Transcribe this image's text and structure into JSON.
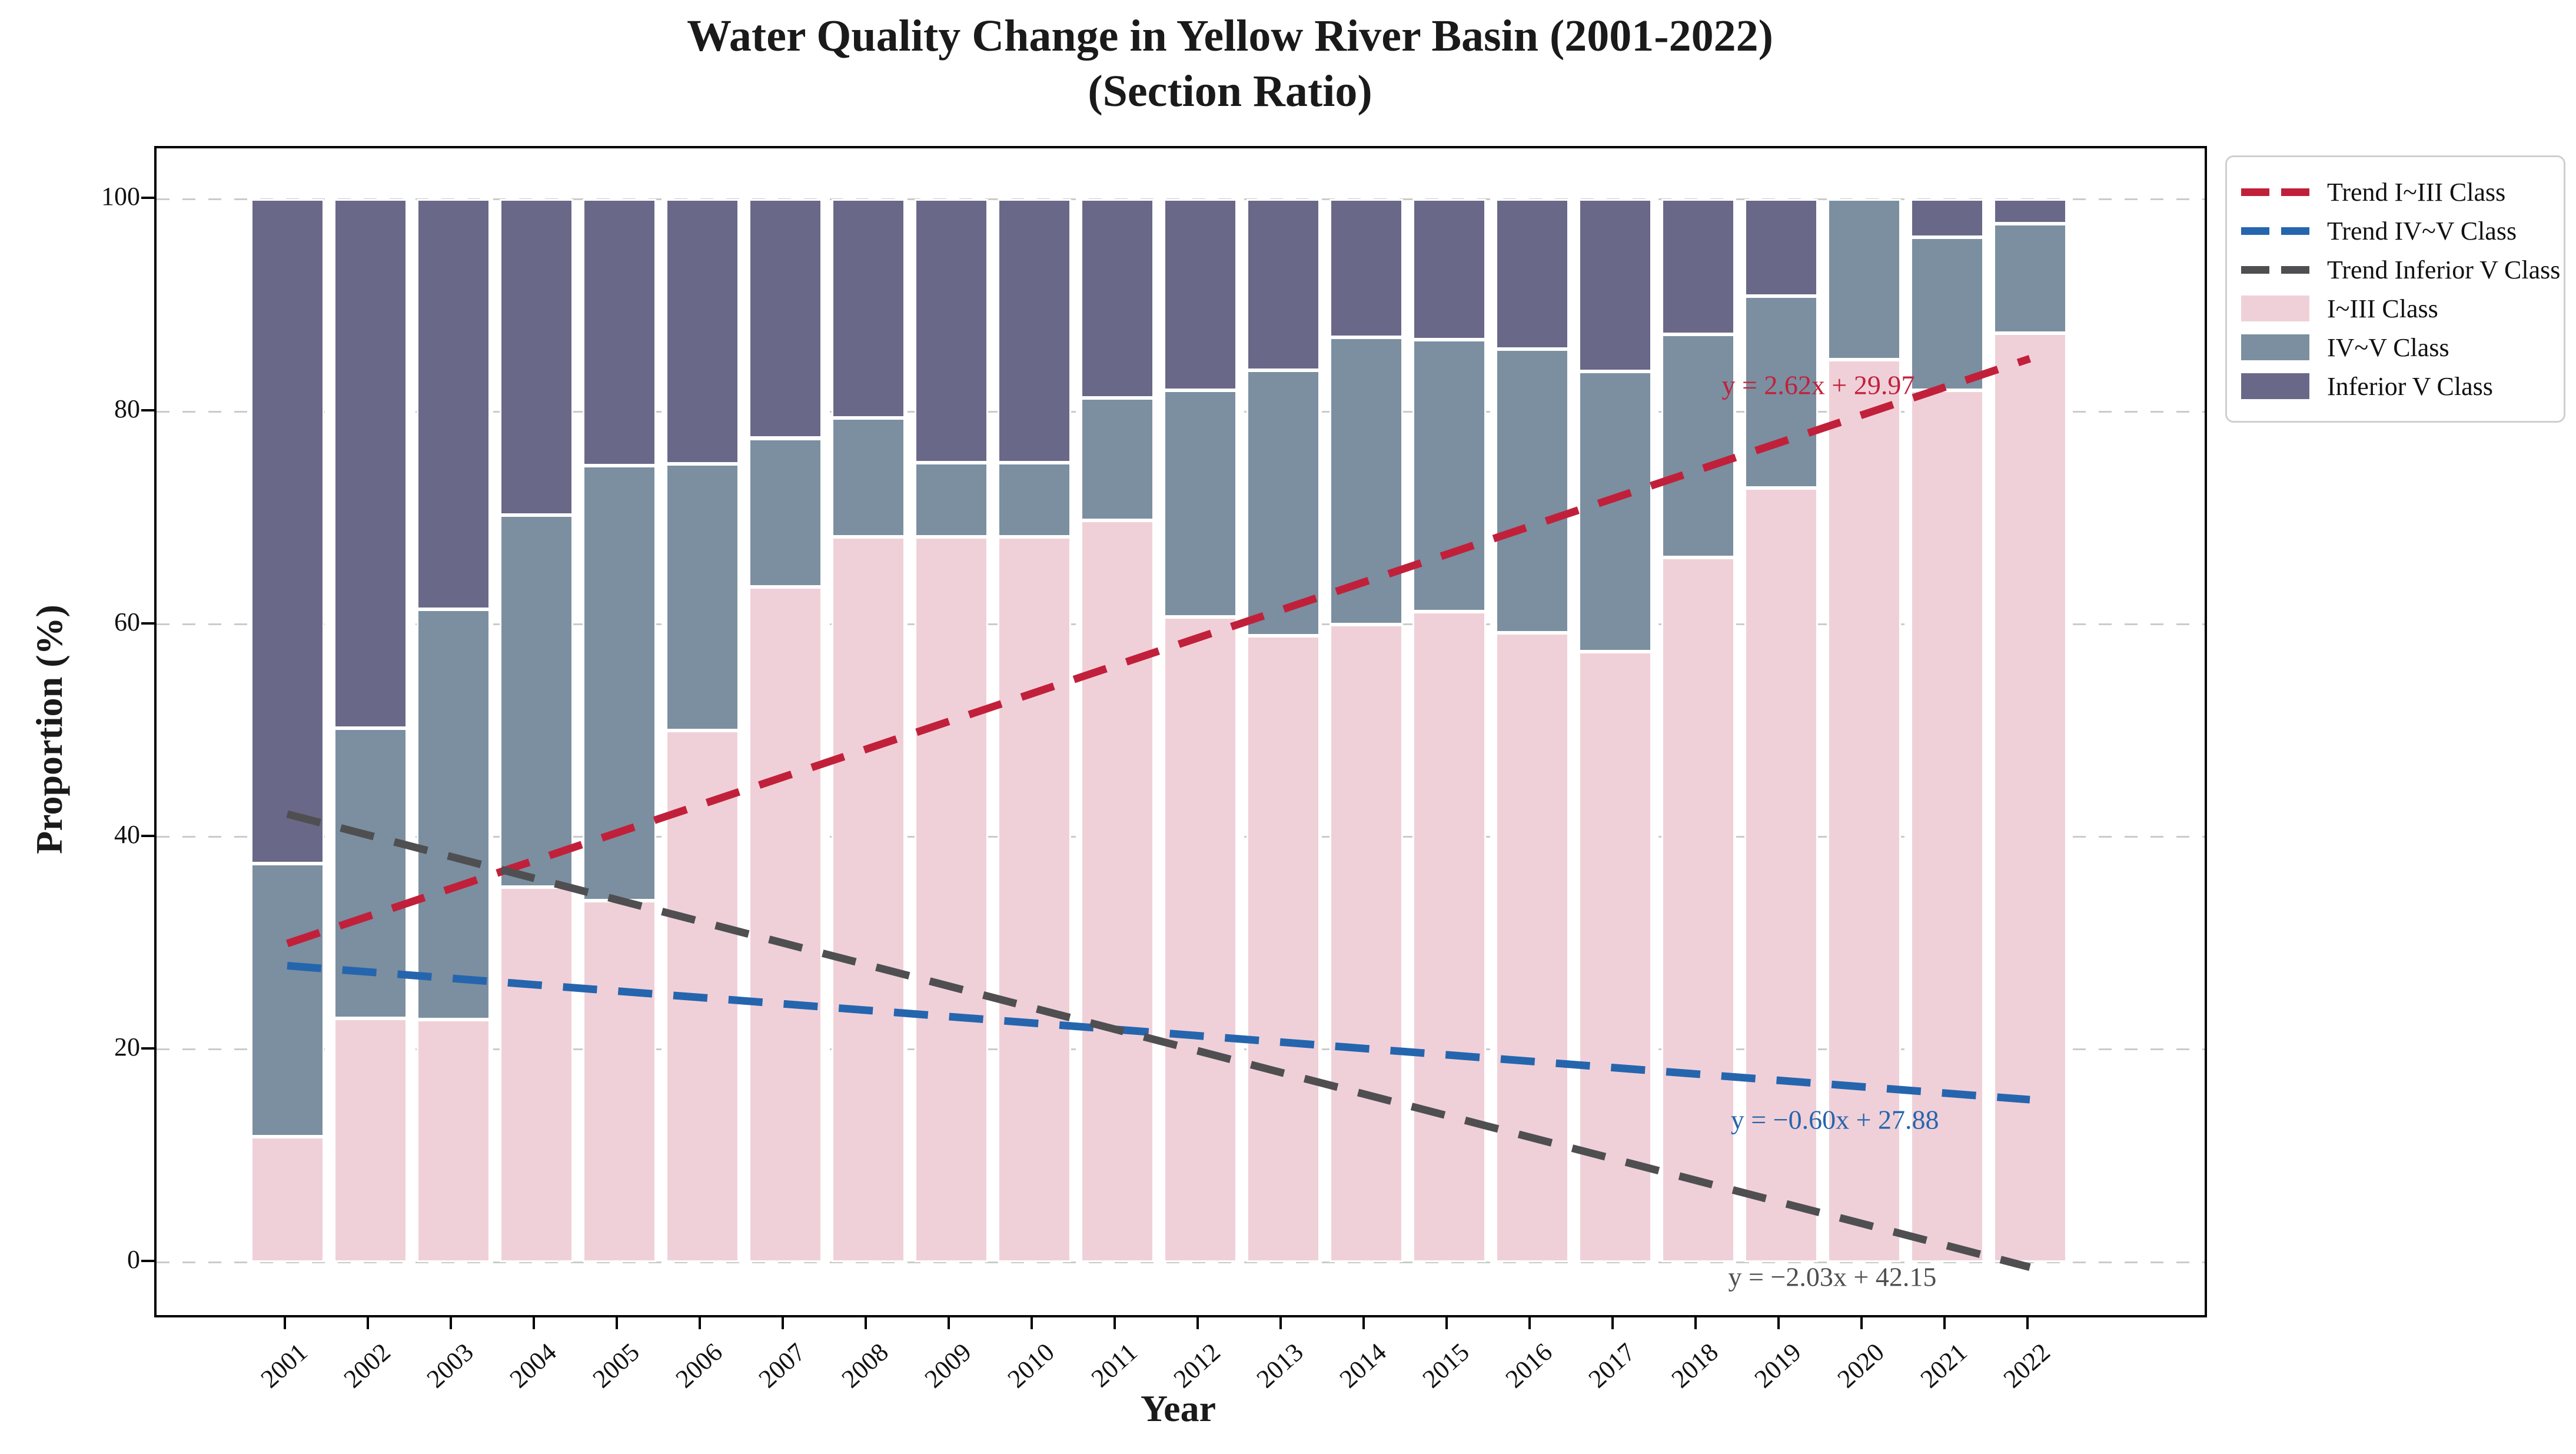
{
  "title": {
    "line1": "Water Quality Change in Yellow River Basin (2001-2022)",
    "line2": "(Section Ratio)"
  },
  "axes": {
    "x_label": "Year",
    "y_label": "Proportion (%)",
    "y_ticks": [
      0,
      20,
      40,
      60,
      80,
      100
    ]
  },
  "colors": {
    "pink": "#f0d0d8",
    "steel": "#7b8fa0",
    "purple": "#6a6888",
    "trend_red": "#c1203b",
    "trend_blue": "#2565ae",
    "trend_gray": "#4f4f51",
    "grid": "#cbcbcb"
  },
  "legend": {
    "items": [
      {
        "kind": "line",
        "label": "Trend I~III Class",
        "color": "#c1203b"
      },
      {
        "kind": "line",
        "label": "Trend IV~V Class",
        "color": "#2565ae"
      },
      {
        "kind": "line",
        "label": "Trend Inferior V Class",
        "color": "#4f4f51"
      },
      {
        "kind": "patch",
        "label": "I~III Class",
        "color": "#f0d0d8"
      },
      {
        "kind": "patch",
        "label": "IV~V Class",
        "color": "#7b8fa0"
      },
      {
        "kind": "patch",
        "label": "Inferior V Class",
        "color": "#6a6888"
      }
    ]
  },
  "annotations": [
    {
      "text": "y = 2.62x + 29.97",
      "color": "#c1203b"
    },
    {
      "text": "y = −0.60x + 27.88",
      "color": "#2565ae"
    },
    {
      "text": "y = −2.03x + 42.15",
      "color": "#4f4f51"
    }
  ],
  "chart_data": {
    "type": "bar",
    "stacked": true,
    "title": "Water Quality Change in Yellow River Basin (2001-2022) (Section Ratio)",
    "xlabel": "Year",
    "ylabel": "Proportion (%)",
    "ylim": [
      0,
      100
    ],
    "grid": "horizontal-dashed",
    "legend_position": "outside-upper-right",
    "categories": [
      "2001",
      "2002",
      "2003",
      "2004",
      "2005",
      "2006",
      "2007",
      "2008",
      "2009",
      "2010",
      "2011",
      "2012",
      "2013",
      "2014",
      "2015",
      "2016",
      "2017",
      "2018",
      "2019",
      "2020",
      "2021",
      "2022"
    ],
    "series": [
      {
        "name": "I~III Class",
        "color": "#f0d0d8",
        "values": [
          11.8,
          22.9,
          22.8,
          35.3,
          34.0,
          50.0,
          63.5,
          68.2,
          68.2,
          68.2,
          69.8,
          60.7,
          58.9,
          60.0,
          61.2,
          59.2,
          57.4,
          66.3,
          72.8,
          84.9,
          82.0,
          87.4
        ]
      },
      {
        "name": "IV~V Class",
        "color": "#7b8fa0",
        "values": [
          25.7,
          27.3,
          38.6,
          35.0,
          40.9,
          25.1,
          14.0,
          11.2,
          7.0,
          7.0,
          11.5,
          21.3,
          25.0,
          27.0,
          25.6,
          26.7,
          26.4,
          21.0,
          18.1,
          15.1,
          14.4,
          10.3
        ]
      },
      {
        "name": "Inferior V Class",
        "color": "#6a6888",
        "values": [
          62.5,
          49.8,
          38.6,
          29.7,
          25.1,
          24.9,
          22.5,
          20.6,
          24.8,
          24.8,
          18.7,
          18.0,
          16.1,
          13.0,
          13.2,
          14.1,
          16.2,
          12.7,
          9.1,
          0.0,
          3.6,
          2.3
        ]
      }
    ],
    "trend_lines": [
      {
        "name": "Trend I~III Class",
        "equation": "y = 2.62x + 29.97",
        "slope": 2.62,
        "intercept": 29.97,
        "x_unit": "years since 2001",
        "color": "#c1203b"
      },
      {
        "name": "Trend IV~V Class",
        "equation": "y = −0.60x + 27.88",
        "slope": -0.6,
        "intercept": 27.88,
        "x_unit": "years since 2001",
        "color": "#2565ae"
      },
      {
        "name": "Trend Inferior V Class",
        "equation": "y = −2.03x + 42.15",
        "slope": -2.03,
        "intercept": 42.15,
        "x_unit": "years since 2001",
        "color": "#4f4f51"
      }
    ]
  }
}
